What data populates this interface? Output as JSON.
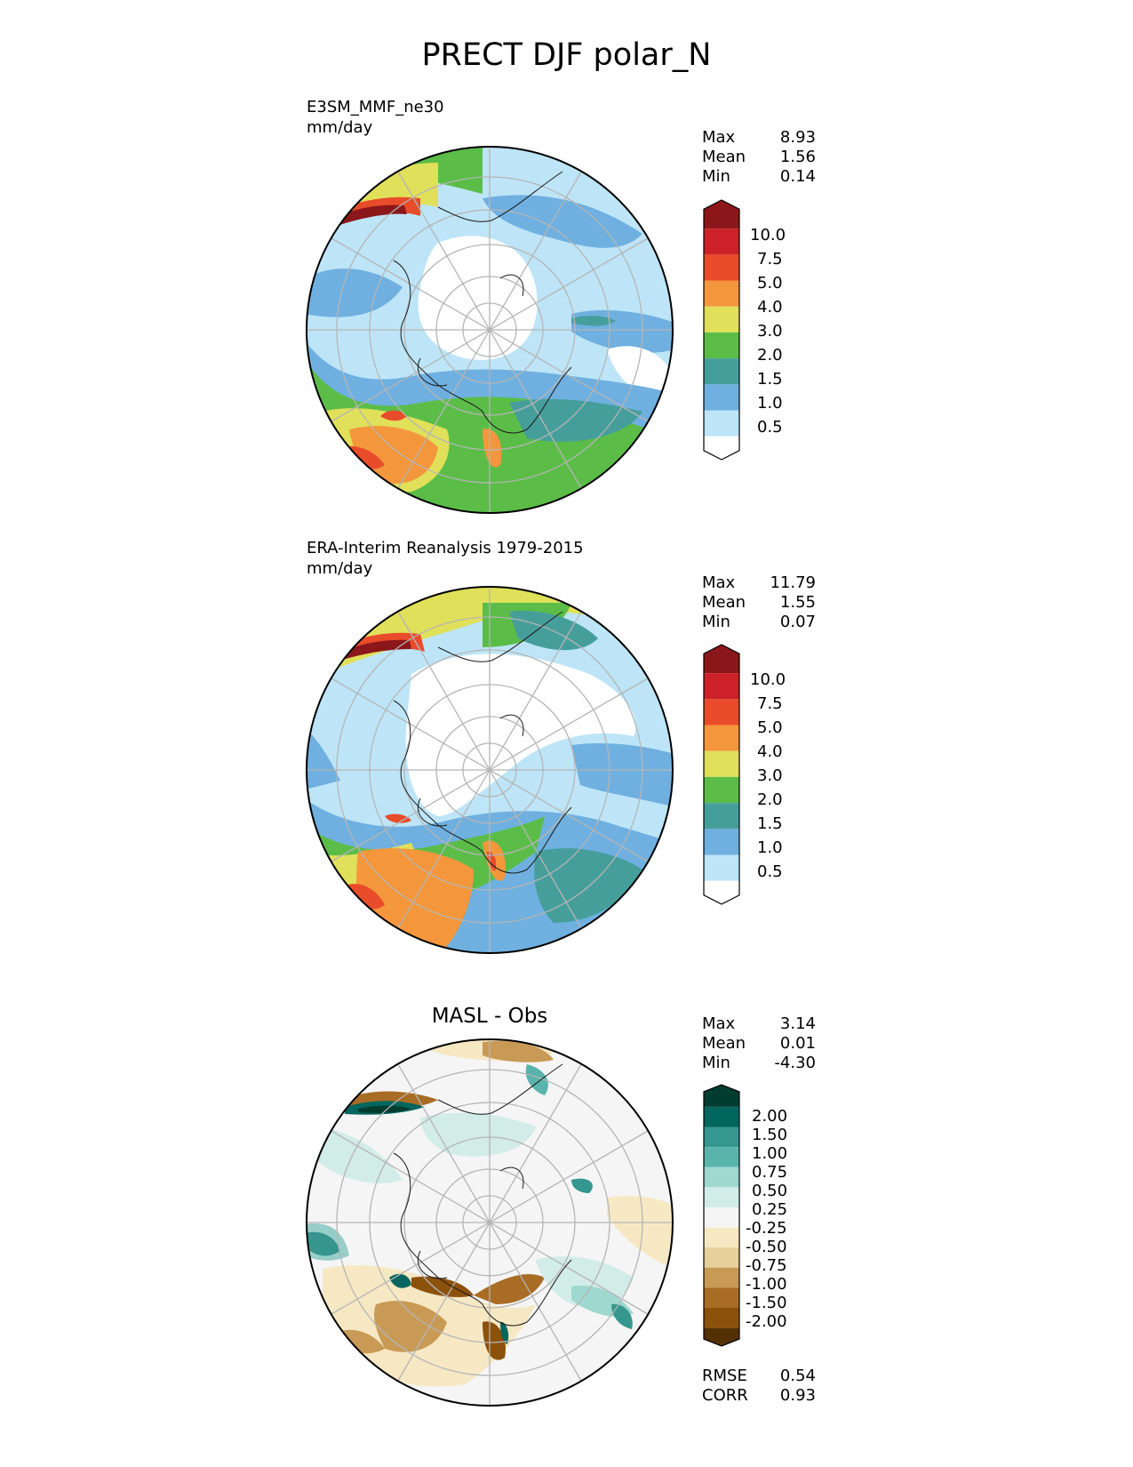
{
  "title": "PRECT DJF polar_N",
  "panels": [
    {
      "line1": "E3SM_MMF_ne30",
      "line2": "mm/day",
      "stats": [
        {
          "label": "Max",
          "value": "8.93"
        },
        {
          "label": "Mean",
          "value": "1.56"
        },
        {
          "label": "Min",
          "value": "0.14"
        }
      ]
    },
    {
      "line1": "ERA-Interim Reanalysis 1979-2015",
      "line2": "mm/day",
      "stats": [
        {
          "label": "Max",
          "value": "11.79"
        },
        {
          "label": "Mean",
          "value": "1.55"
        },
        {
          "label": "Min",
          "value": "0.07"
        }
      ]
    },
    {
      "title": "MASL - Obs",
      "stats": [
        {
          "label": "Max",
          "value": "3.14"
        },
        {
          "label": "Mean",
          "value": "0.01"
        },
        {
          "label": "Min",
          "value": "-4.30"
        }
      ],
      "metrics": [
        {
          "label": "RMSE",
          "value": "0.54"
        },
        {
          "label": "CORR",
          "value": "0.93"
        }
      ]
    }
  ],
  "colorbars": {
    "precip": {
      "ticks": [
        "10.0",
        "7.5",
        "5.0",
        "4.0",
        "3.0",
        "2.0",
        "1.5",
        "1.0",
        "0.5"
      ],
      "colors": [
        "#8b171b",
        "#cc2128",
        "#e84c2b",
        "#f4973c",
        "#e0e05a",
        "#5bbd48",
        "#469e9b",
        "#6fb0e0",
        "#bde5f7",
        "#ffffff"
      ]
    },
    "diff": {
      "ticks": [
        "2.00",
        "1.50",
        "1.00",
        "0.75",
        "0.50",
        "0.25",
        "-0.25",
        "-0.50",
        "-0.75",
        "-1.00",
        "-1.50",
        "-2.00"
      ],
      "colors": [
        "#003c30",
        "#01665e",
        "#35978f",
        "#5ab4ac",
        "#9ed8cf",
        "#d2ece7",
        "#f5f5f5",
        "#f6e8c3",
        "#e8d09a",
        "#c89a55",
        "#a96c25",
        "#8c510a",
        "#543005"
      ]
    }
  }
}
